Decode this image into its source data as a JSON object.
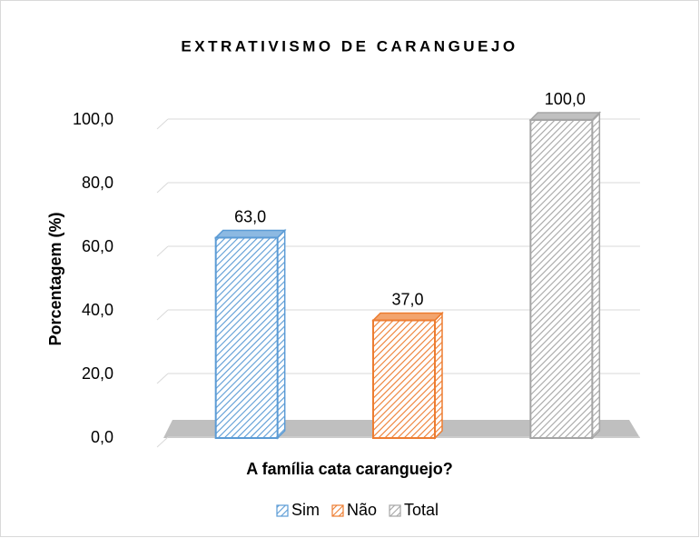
{
  "chart_data": {
    "type": "bar3d",
    "title": "EXTRATIVISMO DE CARANGUEJO",
    "xlabel": "A família cata caranguejo?",
    "ylabel": "Porcentagem (%)",
    "categories": [
      null
    ],
    "series": [
      {
        "name": "Sim",
        "color": "#5b9bd5",
        "values": [
          63
        ],
        "value_labels": [
          "63,0"
        ]
      },
      {
        "name": "Não",
        "color": "#ed7d31",
        "values": [
          37
        ],
        "value_labels": [
          "37,0"
        ]
      },
      {
        "name": "Total",
        "color": "#a5a5a5",
        "values": [
          100
        ],
        "value_labels": [
          "100,0"
        ]
      }
    ],
    "ylim": [
      0,
      100
    ],
    "yticks": [
      {
        "value": 0,
        "label": "0,0"
      },
      {
        "value": 20,
        "label": "20,0"
      },
      {
        "value": 40,
        "label": "40,0"
      },
      {
        "value": 60,
        "label": "60,0"
      },
      {
        "value": 80,
        "label": "80,0"
      },
      {
        "value": 100,
        "label": "100,0"
      }
    ],
    "grid": true,
    "legend": "bottom"
  }
}
